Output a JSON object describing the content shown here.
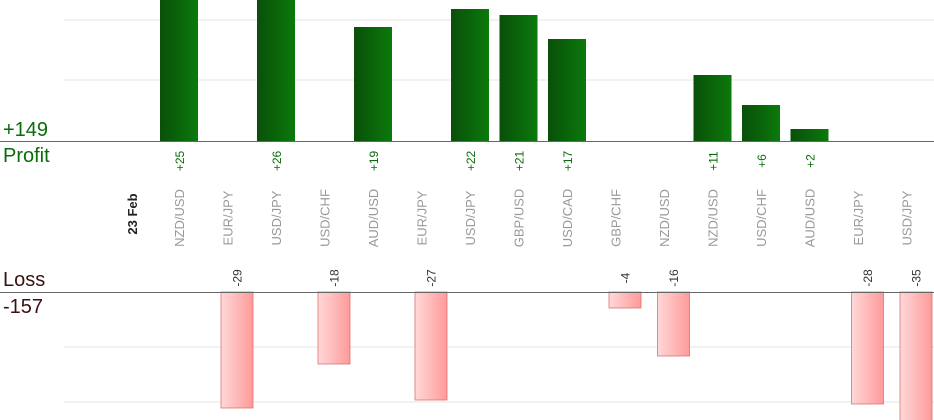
{
  "labels": {
    "profit_total": "+149",
    "profit_word": "Profit",
    "loss_word": "Loss",
    "loss_total": "-157",
    "date": "23 Feb"
  },
  "colors": {
    "profit_bar_dark": "#0a4f0a",
    "profit_bar_light": "#0b7a0b",
    "profit_text": "#0a6b0a",
    "loss_bar_light": "#ffd8d8",
    "loss_bar_dark": "#ff9a9a",
    "loss_stroke": "#e07070",
    "axis": "#666666",
    "grid": "#e6e6e6",
    "pair_text": "#999999"
  },
  "chart_data": {
    "type": "bar",
    "categories": [
      "NZD/USD",
      "EUR/JPY",
      "USD/JPY",
      "USD/CHF",
      "AUD/USD",
      "EUR/JPY",
      "USD/JPY",
      "GBP/USD",
      "USD/CAD",
      "GBP/CHF",
      "NZD/USD",
      "NZD/USD",
      "USD/CHF",
      "AUD/USD",
      "EUR/JPY",
      "USD/JPY"
    ],
    "profit": [
      25,
      null,
      26,
      null,
      19,
      null,
      22,
      21,
      17,
      null,
      null,
      11,
      6,
      2,
      null,
      null
    ],
    "loss": [
      null,
      -29,
      null,
      -18,
      null,
      -27,
      null,
      null,
      null,
      -4,
      -16,
      null,
      null,
      null,
      -28,
      -35
    ],
    "profit_labels": [
      "+25",
      "",
      "+26",
      "",
      "+19",
      "",
      "+22",
      "+21",
      "+17",
      "",
      "",
      "+11",
      "+6",
      "+2",
      "",
      ""
    ],
    "loss_labels": [
      "",
      "-29",
      "",
      "-18",
      "",
      "-27",
      "",
      "",
      "",
      "-4",
      "-16",
      "",
      "",
      "",
      "-28",
      "-35"
    ],
    "profit_total": 149,
    "loss_total": -157
  }
}
